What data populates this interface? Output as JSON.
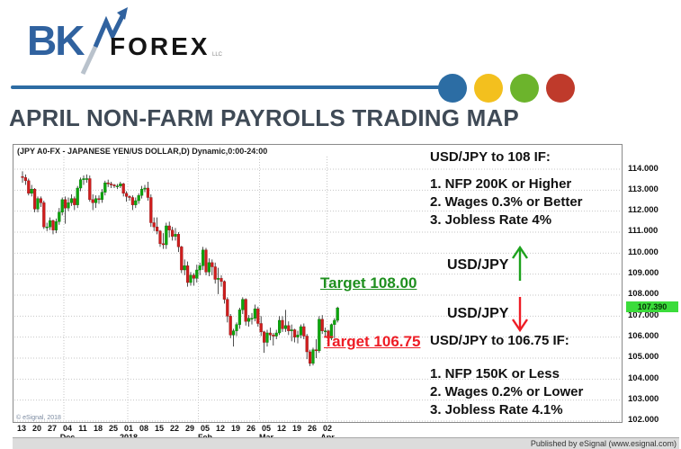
{
  "brand": {
    "bk": "BK",
    "forex": "FOREX",
    "llc": "LLC"
  },
  "page_title": "APRIL NON-FARM PAYROLLS TRADING MAP",
  "header_rule": {
    "line_color": "#2d6ca3",
    "circle_colors": [
      "#2c6da4",
      "#f3c01e",
      "#6cb42c",
      "#bf3a2b"
    ]
  },
  "watermark": "© eSignal, 2018",
  "footer": {
    "published": "Published by eSignal (www.esignal.com)"
  },
  "price_axis": {
    "labels": [
      "114.000",
      "113.000",
      "112.000",
      "111.000",
      "110.000",
      "109.000",
      "108.000",
      "107.000",
      "106.000",
      "105.000",
      "104.000",
      "103.000",
      "102.000"
    ],
    "current": "107.390",
    "current_bg": "#3bdc3b"
  },
  "date_axis": {
    "ticks": [
      "13",
      "20",
      "27",
      "04",
      "11",
      "18",
      "25",
      "01",
      "08",
      "15",
      "22",
      "29",
      "05",
      "12",
      "19",
      "26",
      "05",
      "12",
      "19",
      "26",
      "02"
    ],
    "months": [
      {
        "label": "Dec",
        "tick_index": 3
      },
      {
        "label": "2018",
        "tick_index": 7
      },
      {
        "label": "Feb",
        "tick_index": 12
      },
      {
        "label": "Mar",
        "tick_index": 16
      },
      {
        "label": "Apr",
        "tick_index": 20
      }
    ]
  },
  "annotations": {
    "up_scenario_title": "USD/JPY to 108 IF:",
    "up_conditions": [
      "1. NFP 200K or Higher",
      "2. Wages 0.3% or Better",
      "3. Jobless Rate 4%"
    ],
    "pair_up": "USD/JPY",
    "target_up": "Target 108.00",
    "pair_down": "USD/JPY",
    "target_down": "Target 106.75",
    "down_scenario_title": "USD/JPY to 106.75 IF:",
    "down_conditions": [
      "1. NFP 150K or Less",
      "2. Wages 0.2% or Lower",
      "3. Jobless Rate 4.1%"
    ],
    "green": "#1e8f1e",
    "red": "#ee1c25"
  },
  "chart_data": {
    "type": "candlestick",
    "title": "(JPY A0-FX - JAPANESE YEN/US DOLLAR,D) Dynamic,0:00-24:00",
    "symbol": "USD/JPY (JPY A0-FX)",
    "interval": "Daily",
    "ylim": [
      102,
      114.5
    ],
    "y_gridlines": [
      114,
      113,
      112,
      111,
      110,
      109,
      108,
      107,
      106,
      105,
      104,
      103,
      102
    ],
    "grid": "dotted",
    "last_price": 107.39,
    "up_color": "#0da60d",
    "down_color": "#cf1d1d",
    "wick_color": "#222222",
    "dates": [
      "11-13",
      "11-14",
      "11-15",
      "11-16",
      "11-17",
      "11-20",
      "11-21",
      "11-22",
      "11-23",
      "11-24",
      "11-27",
      "11-28",
      "11-29",
      "11-30",
      "12-01",
      "12-04",
      "12-05",
      "12-06",
      "12-07",
      "12-08",
      "12-11",
      "12-12",
      "12-13",
      "12-14",
      "12-15",
      "12-18",
      "12-19",
      "12-20",
      "12-21",
      "12-22",
      "12-25",
      "12-26",
      "12-27",
      "12-28",
      "12-29",
      "01-01",
      "01-02",
      "01-03",
      "01-04",
      "01-05",
      "01-08",
      "01-09",
      "01-10",
      "01-11",
      "01-12",
      "01-15",
      "01-16",
      "01-17",
      "01-18",
      "01-19",
      "01-22",
      "01-23",
      "01-24",
      "01-25",
      "01-26",
      "01-29",
      "01-30",
      "01-31",
      "02-01",
      "02-02",
      "02-05",
      "02-06",
      "02-07",
      "02-08",
      "02-09",
      "02-12",
      "02-13",
      "02-14",
      "02-15",
      "02-16",
      "02-19",
      "02-20",
      "02-21",
      "02-22",
      "02-23",
      "02-26",
      "02-27",
      "02-28",
      "03-01",
      "03-02",
      "03-05",
      "03-06",
      "03-07",
      "03-08",
      "03-09",
      "03-12",
      "03-13",
      "03-14",
      "03-15",
      "03-16",
      "03-19",
      "03-20",
      "03-21",
      "03-22",
      "03-23",
      "03-26",
      "03-27",
      "03-28",
      "03-29",
      "03-30",
      "04-02",
      "04-03",
      "04-04",
      "04-05"
    ],
    "ohlc": [
      [
        113.65,
        113.9,
        113.35,
        113.6
      ],
      [
        113.6,
        113.75,
        113.25,
        113.45
      ],
      [
        113.45,
        113.55,
        112.75,
        112.85
      ],
      [
        112.85,
        113.25,
        112.7,
        113.05
      ],
      [
        113.05,
        113.1,
        111.95,
        112.1
      ],
      [
        112.1,
        112.7,
        111.95,
        112.6
      ],
      [
        112.6,
        112.7,
        112.2,
        112.4
      ],
      [
        112.4,
        112.5,
        111.15,
        111.25
      ],
      [
        111.25,
        111.45,
        111.05,
        111.25
      ],
      [
        111.25,
        111.7,
        111.1,
        111.55
      ],
      [
        111.55,
        111.6,
        110.9,
        111.1
      ],
      [
        111.1,
        111.65,
        110.95,
        111.5
      ],
      [
        111.5,
        112.15,
        111.35,
        111.95
      ],
      [
        111.95,
        112.65,
        111.8,
        112.55
      ],
      [
        112.55,
        112.7,
        111.4,
        112.15
      ],
      [
        112.15,
        112.65,
        112.0,
        112.4
      ],
      [
        112.4,
        112.8,
        112.25,
        112.6
      ],
      [
        112.6,
        112.7,
        112.05,
        112.3
      ],
      [
        112.3,
        113.2,
        112.15,
        113.1
      ],
      [
        113.1,
        113.6,
        112.95,
        113.5
      ],
      [
        113.5,
        113.7,
        113.25,
        113.55
      ],
      [
        113.55,
        113.75,
        113.35,
        113.55
      ],
      [
        113.55,
        113.7,
        112.45,
        112.55
      ],
      [
        112.55,
        112.8,
        112.05,
        112.4
      ],
      [
        112.4,
        112.75,
        112.15,
        112.6
      ],
      [
        112.6,
        112.75,
        112.35,
        112.55
      ],
      [
        112.55,
        113.05,
        112.4,
        112.9
      ],
      [
        112.9,
        113.45,
        112.75,
        113.35
      ],
      [
        113.35,
        113.5,
        113.15,
        113.3
      ],
      [
        113.3,
        113.4,
        113.1,
        113.25
      ],
      [
        113.25,
        113.3,
        113.1,
        113.2
      ],
      [
        113.2,
        113.3,
        113.05,
        113.2
      ],
      [
        113.2,
        113.4,
        113.1,
        113.3
      ],
      [
        113.3,
        113.35,
        112.7,
        112.85
      ],
      [
        112.85,
        112.95,
        112.45,
        112.7
      ],
      [
        112.7,
        112.75,
        112.5,
        112.65
      ],
      [
        112.65,
        112.75,
        112.05,
        112.3
      ],
      [
        112.3,
        112.65,
        112.15,
        112.5
      ],
      [
        112.5,
        112.85,
        112.35,
        112.75
      ],
      [
        112.75,
        113.2,
        112.6,
        113.05
      ],
      [
        113.05,
        113.25,
        112.9,
        113.1
      ],
      [
        113.1,
        113.4,
        112.5,
        112.65
      ],
      [
        112.65,
        112.8,
        111.25,
        111.45
      ],
      [
        111.45,
        111.7,
        111.05,
        111.25
      ],
      [
        111.25,
        111.7,
        110.9,
        111.05
      ],
      [
        111.05,
        111.1,
        110.3,
        110.45
      ],
      [
        110.45,
        110.95,
        110.2,
        110.4
      ],
      [
        110.4,
        111.45,
        110.2,
        111.3
      ],
      [
        111.3,
        111.5,
        110.75,
        111.1
      ],
      [
        111.1,
        111.25,
        110.6,
        110.8
      ],
      [
        110.8,
        111.2,
        110.6,
        110.9
      ],
      [
        110.9,
        111.0,
        110.05,
        110.3
      ],
      [
        110.3,
        110.35,
        109.05,
        109.2
      ],
      [
        109.2,
        109.7,
        108.95,
        109.4
      ],
      [
        109.4,
        109.6,
        108.4,
        108.6
      ],
      [
        108.6,
        109.1,
        108.45,
        108.95
      ],
      [
        108.95,
        109.05,
        108.45,
        108.8
      ],
      [
        108.8,
        109.45,
        108.6,
        109.2
      ],
      [
        109.2,
        109.55,
        108.95,
        109.4
      ],
      [
        109.4,
        110.3,
        109.2,
        110.15
      ],
      [
        110.15,
        110.25,
        108.95,
        109.1
      ],
      [
        109.1,
        109.75,
        108.9,
        109.55
      ],
      [
        109.55,
        109.7,
        108.95,
        109.35
      ],
      [
        109.35,
        109.55,
        108.55,
        108.75
      ],
      [
        108.75,
        109.3,
        108.05,
        108.8
      ],
      [
        108.8,
        108.95,
        108.4,
        108.65
      ],
      [
        108.65,
        108.7,
        107.6,
        107.8
      ],
      [
        107.8,
        107.9,
        106.7,
        107.0
      ],
      [
        107.0,
        107.1,
        105.95,
        106.1
      ],
      [
        106.1,
        106.4,
        105.55,
        106.3
      ],
      [
        106.3,
        106.7,
        106.05,
        106.6
      ],
      [
        106.6,
        107.4,
        106.4,
        107.3
      ],
      [
        107.3,
        107.9,
        107.1,
        107.8
      ],
      [
        107.8,
        107.85,
        106.55,
        106.75
      ],
      [
        106.75,
        107.05,
        106.5,
        106.9
      ],
      [
        106.9,
        107.15,
        106.6,
        106.9
      ],
      [
        106.9,
        107.55,
        106.75,
        107.35
      ],
      [
        107.35,
        107.45,
        106.5,
        106.65
      ],
      [
        106.65,
        107.0,
        106.05,
        106.25
      ],
      [
        106.25,
        106.3,
        105.25,
        105.75
      ],
      [
        105.75,
        106.35,
        105.55,
        106.2
      ],
      [
        106.2,
        106.45,
        105.85,
        106.1
      ],
      [
        106.1,
        106.2,
        105.6,
        106.05
      ],
      [
        106.05,
        106.35,
        105.9,
        106.2
      ],
      [
        106.2,
        107.0,
        106.1,
        106.8
      ],
      [
        106.8,
        107.0,
        106.25,
        106.4
      ],
      [
        106.4,
        107.3,
        106.25,
        106.55
      ],
      [
        106.55,
        106.75,
        106.1,
        106.3
      ],
      [
        106.3,
        106.6,
        105.8,
        106.35
      ],
      [
        106.35,
        106.4,
        105.75,
        106.0
      ],
      [
        106.0,
        106.3,
        105.7,
        106.1
      ],
      [
        106.1,
        106.6,
        105.95,
        106.5
      ],
      [
        106.5,
        106.65,
        105.9,
        106.05
      ],
      [
        106.05,
        106.15,
        104.95,
        105.3
      ],
      [
        105.3,
        105.4,
        104.62,
        104.75
      ],
      [
        104.75,
        105.5,
        104.65,
        105.4
      ],
      [
        105.4,
        105.9,
        105.0,
        105.35
      ],
      [
        105.35,
        107.0,
        105.25,
        106.85
      ],
      [
        106.85,
        107.05,
        106.15,
        106.3
      ],
      [
        106.3,
        106.45,
        106.0,
        106.3
      ],
      [
        106.3,
        106.35,
        105.65,
        105.95
      ],
      [
        105.95,
        106.65,
        105.85,
        106.6
      ],
      [
        106.6,
        106.9,
        105.95,
        106.8
      ],
      [
        106.8,
        107.45,
        106.7,
        107.39
      ]
    ]
  }
}
